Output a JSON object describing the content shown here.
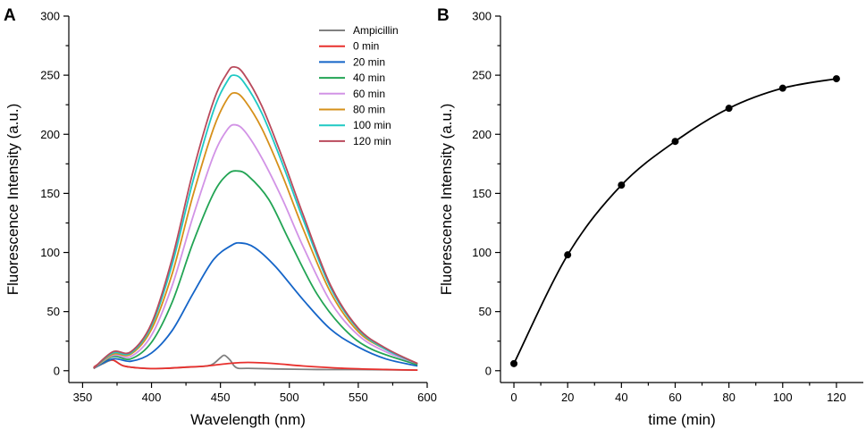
{
  "chart_data": [
    {
      "panel": "A",
      "type": "line",
      "xlabel": "Wavelength (nm)",
      "ylabel": "Fluorescence Intensity (a.u.)",
      "xlim": [
        340,
        600
      ],
      "ylim": [
        -10,
        300
      ],
      "xticks": [
        350,
        400,
        450,
        500,
        550,
        600
      ],
      "yticks": [
        0,
        50,
        100,
        150,
        200,
        250,
        300
      ],
      "legend_position": "top-right",
      "series": [
        {
          "name": "Ampicillin",
          "color": "#808080",
          "x": [
            358,
            365,
            372,
            380,
            395,
            410,
            425,
            440,
            445,
            450,
            453,
            457,
            460,
            463,
            470,
            490,
            520,
            550,
            593
          ],
          "y": [
            2,
            6,
            9,
            4,
            2,
            2,
            3,
            4,
            6,
            11,
            13,
            9,
            4,
            2,
            2,
            1.5,
            1,
            1,
            0.5
          ]
        },
        {
          "name": "0 min",
          "color": "#e8302d",
          "x": [
            358,
            365,
            372,
            380,
            395,
            410,
            425,
            440,
            455,
            470,
            490,
            510,
            540,
            570,
            593
          ],
          "y": [
            3,
            8,
            9,
            4,
            2,
            2,
            3,
            4,
            6,
            7,
            6,
            4,
            2,
            1,
            0.5
          ]
        },
        {
          "name": "20 min",
          "color": "#1565c8",
          "x": [
            358,
            372,
            385,
            400,
            415,
            430,
            445,
            458,
            465,
            475,
            490,
            510,
            530,
            550,
            570,
            593
          ],
          "y": [
            2,
            10,
            8,
            15,
            34,
            65,
            94,
            106,
            108,
            104,
            88,
            60,
            35,
            20,
            10,
            4
          ]
        },
        {
          "name": "40 min",
          "color": "#22a454",
          "x": [
            358,
            372,
            385,
            400,
            415,
            430,
            445,
            455,
            462,
            470,
            485,
            500,
            520,
            540,
            560,
            593
          ],
          "y": [
            2,
            12,
            10,
            24,
            58,
            108,
            150,
            166,
            169,
            165,
            145,
            110,
            65,
            35,
            18,
            5
          ]
        },
        {
          "name": "60 min",
          "color": "#d293e6",
          "x": [
            358,
            372,
            385,
            400,
            415,
            430,
            445,
            455,
            461,
            468,
            480,
            495,
            510,
            530,
            550,
            570,
            593
          ],
          "y": [
            2,
            13,
            12,
            30,
            72,
            130,
            182,
            204,
            208,
            202,
            180,
            145,
            105,
            58,
            30,
            16,
            6
          ]
        },
        {
          "name": "80 min",
          "color": "#d6901a",
          "x": [
            358,
            372,
            385,
            400,
            415,
            430,
            445,
            455,
            461,
            468,
            480,
            495,
            510,
            530,
            550,
            570,
            593
          ],
          "y": [
            2,
            14,
            14,
            35,
            82,
            148,
            205,
            230,
            235,
            228,
            205,
            165,
            120,
            66,
            33,
            18,
            6
          ]
        },
        {
          "name": "100 min",
          "color": "#1fc9c4",
          "x": [
            358,
            372,
            385,
            400,
            415,
            430,
            445,
            455,
            460,
            467,
            480,
            495,
            510,
            530,
            550,
            570,
            593
          ],
          "y": [
            2,
            15,
            15,
            38,
            90,
            160,
            220,
            245,
            250,
            244,
            218,
            175,
            128,
            70,
            35,
            18,
            6
          ]
        },
        {
          "name": "120 min",
          "color": "#b94a5c",
          "x": [
            358,
            372,
            385,
            400,
            415,
            430,
            445,
            455,
            460,
            467,
            480,
            495,
            510,
            530,
            550,
            570,
            593
          ],
          "y": [
            2,
            16,
            16,
            40,
            95,
            168,
            228,
            252,
            257,
            251,
            224,
            180,
            132,
            72,
            36,
            19,
            6
          ]
        }
      ]
    },
    {
      "panel": "B",
      "type": "scatter",
      "xlabel": "time (min)",
      "ylabel": "Fluorescence Intensity (a.u.)",
      "xlim": [
        -5,
        130
      ],
      "ylim": [
        -10,
        300
      ],
      "xticks": [
        0,
        20,
        40,
        60,
        80,
        100,
        120
      ],
      "yticks": [
        0,
        50,
        100,
        150,
        200,
        250,
        300
      ],
      "series": [
        {
          "name": "Fluorescence Intensity",
          "color": "#000000",
          "x": [
            0,
            20,
            40,
            60,
            80,
            100,
            120
          ],
          "y": [
            6,
            98,
            157,
            194,
            222,
            239,
            247
          ]
        }
      ]
    }
  ]
}
